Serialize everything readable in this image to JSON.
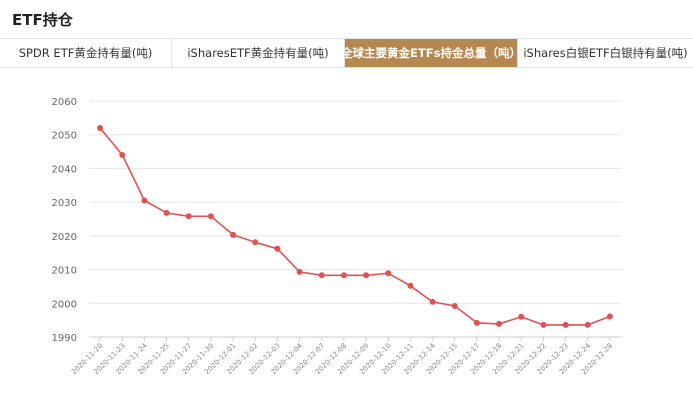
{
  "header": {
    "title": "ETF持仓"
  },
  "tabs": [
    {
      "label": "SPDR ETF黄金持有量(吨)",
      "active": false
    },
    {
      "label": "iSharesETF黄金持有量(吨)",
      "active": false
    },
    {
      "label": "全球主要黄金ETFs持金总量（吨）",
      "active": true
    },
    {
      "label": "iShares白银ETF白银持有量(吨)",
      "active": false
    }
  ],
  "colors": {
    "accent": "#b58852",
    "line": "#e05252",
    "grid": "#e6e6e6"
  },
  "chart_data": {
    "type": "line",
    "title": "",
    "xlabel": "",
    "ylabel": "",
    "ylim": [
      1990,
      2060
    ],
    "yticks": [
      1990,
      2000,
      2010,
      2020,
      2030,
      2040,
      2050,
      2060
    ],
    "grid": true,
    "categories": [
      "2020-11-20",
      "2020-11-23",
      "2020-11-24",
      "2020-11-25",
      "2020-11-27",
      "2020-11-30",
      "2020-12-01",
      "2020-12-02",
      "2020-12-03",
      "2020-12-04",
      "2020-12-07",
      "2020-12-08",
      "2020-12-09",
      "2020-12-10",
      "2020-12-11",
      "2020-12-14",
      "2020-12-15",
      "2020-12-17",
      "2020-12-18",
      "2020-12-21",
      "2020-12-22",
      "2020-12-23",
      "2020-12-24",
      "2020-12-28"
    ],
    "series": [
      {
        "values": [
          2052,
          2044,
          2030.5,
          2026.8,
          2025.8,
          2025.8,
          2020.3,
          2018.1,
          2016.2,
          2009.3,
          2008.3,
          2008.3,
          2008.3,
          2008.9,
          2005.2,
          2000.4,
          1999.2,
          1994.2,
          1993.9,
          1996.0,
          1993.6,
          1993.6,
          1993.6,
          1996.1
        ]
      }
    ]
  }
}
